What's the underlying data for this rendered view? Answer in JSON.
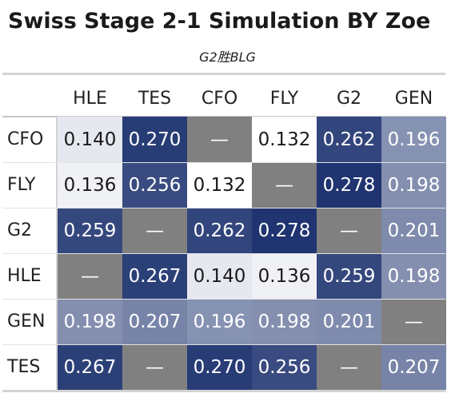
{
  "chart_data": {
    "type": "table",
    "title": "Swiss Stage 2-1 Simulation BY Zoe",
    "subtitle": "G2胜BLG",
    "columns": [
      "HLE",
      "TES",
      "CFO",
      "FLY",
      "G2",
      "GEN"
    ],
    "rows": [
      {
        "label": "CFO",
        "values": [
          "0.140",
          "0.270",
          "—",
          "0.132",
          "0.262",
          "0.196"
        ]
      },
      {
        "label": "FLY",
        "values": [
          "0.136",
          "0.256",
          "0.132",
          "—",
          "0.278",
          "0.198"
        ]
      },
      {
        "label": "G2",
        "values": [
          "0.259",
          "—",
          "0.262",
          "0.278",
          "—",
          "0.201"
        ]
      },
      {
        "label": "HLE",
        "values": [
          "—",
          "0.267",
          "0.140",
          "0.136",
          "0.259",
          "0.198"
        ]
      },
      {
        "label": "GEN",
        "values": [
          "0.198",
          "0.207",
          "0.196",
          "0.198",
          "0.201",
          "—"
        ]
      },
      {
        "label": "TES",
        "values": [
          "0.267",
          "—",
          "0.270",
          "0.256",
          "—",
          "0.207"
        ]
      }
    ],
    "missing_color": "#808080",
    "color_scale": {
      "low": "#ffffff",
      "high": "#1f3470"
    }
  }
}
